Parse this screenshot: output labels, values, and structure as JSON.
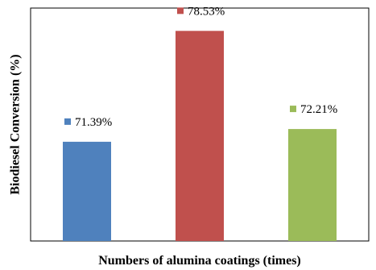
{
  "chart_data": {
    "type": "bar",
    "categories": [
      "",
      "",
      ""
    ],
    "values": [
      71.39,
      78.53,
      72.21
    ],
    "data_labels": [
      "71.39%",
      "78.53%",
      "72.21%"
    ],
    "colors": [
      "#4f81bd",
      "#c0504d",
      "#9bbb59"
    ],
    "title": "",
    "xlabel": "Numbers of alumina coatings (times)",
    "ylabel": "Biodiesel Conversion (%)",
    "ylim": [
      65,
      80
    ],
    "grid": false,
    "legend": "none"
  }
}
